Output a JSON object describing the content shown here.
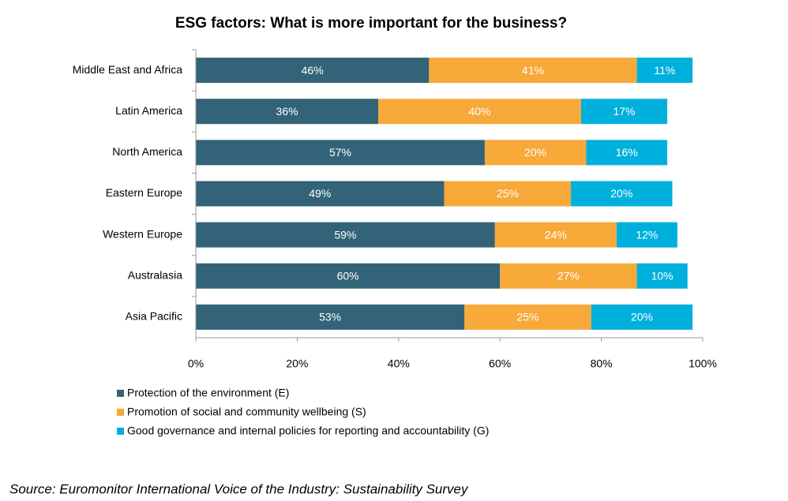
{
  "chart_data": {
    "type": "stacked-barh",
    "title": "ESG factors: What is more important for the business?",
    "categories": [
      "Middle East and Africa",
      "Latin America",
      "North America",
      "Eastern Europe",
      "Western Europe",
      "Australasia",
      "Asia Pacific"
    ],
    "series": [
      {
        "name": "Protection of the environment (E)",
        "color": "#336378",
        "values": [
          46,
          36,
          57,
          49,
          59,
          60,
          53
        ],
        "value_labels": [
          "46%",
          "36%",
          "57%",
          "49%",
          "59%",
          "60%",
          "53%"
        ]
      },
      {
        "name": "Promotion of social and community wellbeing (S)",
        "color": "#f7a93a",
        "values": [
          41,
          40,
          20,
          25,
          24,
          27,
          25
        ],
        "value_labels": [
          "41%",
          "40%",
          "20%",
          "25%",
          "24%",
          "27%",
          "25%"
        ]
      },
      {
        "name": "Good governance and internal policies for reporting and accountability (G)",
        "color": "#00b0dc",
        "values": [
          11,
          17,
          16,
          20,
          12,
          10,
          20
        ],
        "value_labels": [
          "11%",
          "17%",
          "16%",
          "20%",
          "12%",
          "10%",
          "20%"
        ]
      }
    ],
    "xlim": [
      0,
      100
    ],
    "xticks": [
      {
        "value": 0,
        "label": "0%"
      },
      {
        "value": 20,
        "label": "20%"
      },
      {
        "value": 40,
        "label": "40%"
      },
      {
        "value": 60,
        "label": "60%"
      },
      {
        "value": 80,
        "label": "80%"
      },
      {
        "value": 100,
        "label": "100%"
      }
    ],
    "grid": false,
    "legend": "bottom",
    "source": "Source: Euromonitor International Voice of the Industry: Sustainability Survey"
  }
}
